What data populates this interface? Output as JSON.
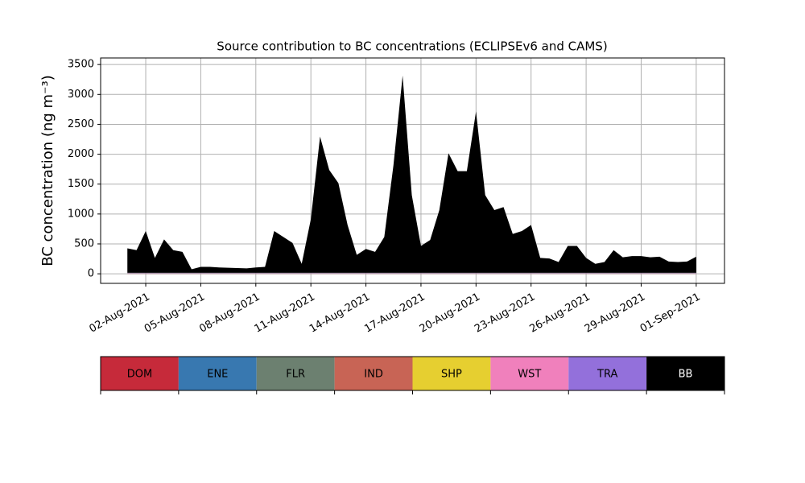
{
  "chart_data": {
    "type": "stacked_area",
    "title": "Source contribution to BC concentrations (ECLIPSEv6 and CAMS)",
    "y_label": "BC concentration (ng m⁻³)",
    "x": [
      "2021-08-01T00:00",
      "2021-08-01T12:00",
      "2021-08-02T00:00",
      "2021-08-02T12:00",
      "2021-08-03T00:00",
      "2021-08-03T12:00",
      "2021-08-04T00:00",
      "2021-08-04T12:00",
      "2021-08-05T00:00",
      "2021-08-05T12:00",
      "2021-08-06T00:00",
      "2021-08-06T12:00",
      "2021-08-07T00:00",
      "2021-08-07T12:00",
      "2021-08-08T00:00",
      "2021-08-08T12:00",
      "2021-08-09T00:00",
      "2021-08-09T12:00",
      "2021-08-10T00:00",
      "2021-08-10T12:00",
      "2021-08-11T00:00",
      "2021-08-11T12:00",
      "2021-08-12T00:00",
      "2021-08-12T12:00",
      "2021-08-13T00:00",
      "2021-08-13T12:00",
      "2021-08-14T00:00",
      "2021-08-14T12:00",
      "2021-08-15T00:00",
      "2021-08-15T12:00",
      "2021-08-16T00:00",
      "2021-08-16T12:00",
      "2021-08-17T00:00",
      "2021-08-17T12:00",
      "2021-08-18T00:00",
      "2021-08-18T12:00",
      "2021-08-19T00:00",
      "2021-08-19T12:00",
      "2021-08-20T00:00",
      "2021-08-20T12:00",
      "2021-08-21T00:00",
      "2021-08-21T12:00",
      "2021-08-22T00:00",
      "2021-08-22T12:00",
      "2021-08-23T00:00",
      "2021-08-23T12:00",
      "2021-08-24T00:00",
      "2021-08-24T12:00",
      "2021-08-25T00:00",
      "2021-08-25T12:00",
      "2021-08-26T00:00",
      "2021-08-26T12:00",
      "2021-08-27T00:00",
      "2021-08-27T12:00",
      "2021-08-28T00:00",
      "2021-08-28T12:00",
      "2021-08-29T00:00",
      "2021-08-29T12:00",
      "2021-08-30T00:00",
      "2021-08-30T12:00",
      "2021-08-31T00:00",
      "2021-08-31T12:00",
      "2021-09-01T00:00"
    ],
    "series": [
      {
        "name": "DOM",
        "color": "#c62a3a",
        "values": [
          4,
          4,
          4,
          4,
          4,
          4,
          4,
          4,
          4,
          4,
          4,
          4,
          4,
          4,
          4,
          4,
          4,
          4,
          4,
          4,
          4,
          4,
          4,
          4,
          4,
          4,
          4,
          4,
          4,
          4,
          4,
          4,
          4,
          4,
          4,
          4,
          4,
          4,
          4,
          4,
          4,
          4,
          4,
          4,
          4,
          4,
          4,
          4,
          4,
          4,
          4,
          4,
          4,
          4,
          4,
          4,
          4,
          4,
          4,
          4,
          4,
          4,
          4
        ]
      },
      {
        "name": "ENE",
        "color": "#3878b0",
        "values": [
          2,
          2,
          2,
          2,
          2,
          2,
          2,
          2,
          2,
          2,
          2,
          2,
          2,
          2,
          2,
          2,
          2,
          2,
          2,
          2,
          2,
          2,
          2,
          2,
          2,
          2,
          2,
          2,
          2,
          2,
          2,
          2,
          2,
          2,
          2,
          2,
          2,
          2,
          2,
          2,
          2,
          2,
          2,
          2,
          2,
          2,
          2,
          2,
          2,
          2,
          2,
          2,
          2,
          2,
          2,
          2,
          2,
          2,
          2,
          2,
          2,
          2,
          2
        ]
      },
      {
        "name": "FLR",
        "color": "#6c8070",
        "values": [
          1,
          1,
          1,
          1,
          1,
          1,
          1,
          1,
          1,
          1,
          1,
          1,
          1,
          1,
          1,
          1,
          1,
          1,
          1,
          1,
          1,
          1,
          1,
          1,
          1,
          1,
          1,
          1,
          1,
          1,
          1,
          1,
          1,
          1,
          1,
          1,
          1,
          1,
          1,
          1,
          1,
          1,
          1,
          1,
          1,
          1,
          1,
          1,
          1,
          1,
          1,
          1,
          1,
          1,
          1,
          1,
          1,
          1,
          1,
          1,
          1,
          1,
          1
        ]
      },
      {
        "name": "IND",
        "color": "#c86455",
        "values": [
          3,
          3,
          3,
          3,
          3,
          3,
          3,
          3,
          3,
          3,
          3,
          3,
          3,
          3,
          3,
          3,
          3,
          3,
          3,
          3,
          3,
          3,
          3,
          3,
          3,
          3,
          3,
          3,
          3,
          3,
          3,
          3,
          3,
          3,
          3,
          3,
          3,
          3,
          3,
          3,
          3,
          3,
          3,
          3,
          3,
          3,
          3,
          3,
          3,
          3,
          3,
          3,
          3,
          3,
          3,
          3,
          3,
          3,
          3,
          3,
          3,
          3,
          3
        ]
      },
      {
        "name": "SHP",
        "color": "#e6cf30",
        "values": [
          1,
          1,
          1,
          1,
          1,
          1,
          1,
          1,
          1,
          1,
          1,
          1,
          1,
          1,
          1,
          1,
          1,
          1,
          1,
          1,
          1,
          1,
          1,
          1,
          1,
          1,
          1,
          1,
          1,
          1,
          1,
          1,
          1,
          1,
          1,
          1,
          1,
          1,
          1,
          1,
          1,
          1,
          1,
          1,
          1,
          1,
          1,
          1,
          1,
          1,
          1,
          1,
          1,
          1,
          1,
          1,
          1,
          1,
          1,
          1,
          1,
          1,
          1
        ]
      },
      {
        "name": "WST",
        "color": "#f080bc",
        "values": [
          1,
          1,
          1,
          1,
          1,
          1,
          1,
          1,
          1,
          1,
          1,
          1,
          1,
          1,
          1,
          1,
          1,
          1,
          1,
          1,
          1,
          1,
          1,
          1,
          1,
          1,
          1,
          1,
          1,
          1,
          1,
          1,
          1,
          1,
          1,
          1,
          1,
          1,
          1,
          1,
          1,
          1,
          1,
          1,
          1,
          1,
          1,
          1,
          1,
          1,
          1,
          1,
          1,
          1,
          1,
          1,
          1,
          1,
          1,
          1,
          1,
          1,
          1
        ]
      },
      {
        "name": "TRA",
        "color": "#9370db",
        "values": [
          4,
          4,
          4,
          4,
          4,
          4,
          4,
          4,
          4,
          4,
          4,
          4,
          4,
          4,
          4,
          4,
          4,
          4,
          4,
          4,
          4,
          4,
          4,
          4,
          4,
          4,
          4,
          4,
          4,
          4,
          4,
          4,
          4,
          4,
          4,
          4,
          4,
          4,
          4,
          4,
          4,
          4,
          4,
          4,
          4,
          4,
          4,
          4,
          4,
          4,
          4,
          4,
          4,
          4,
          4,
          4,
          4,
          4,
          4,
          4,
          4,
          4,
          4
        ]
      },
      {
        "name": "BB",
        "color": "#000000",
        "values": [
          410,
          380,
          700,
          250,
          560,
          380,
          350,
          60,
          100,
          100,
          90,
          85,
          80,
          75,
          90,
          100,
          700,
          600,
          500,
          150,
          900,
          2280,
          1720,
          1500,
          800,
          300,
          400,
          350,
          600,
          1800,
          3300,
          1300,
          450,
          550,
          1050,
          2000,
          1700,
          1700,
          2700,
          1300,
          1050,
          1100,
          650,
          700,
          800,
          250,
          240,
          180,
          450,
          450,
          250,
          150,
          180,
          380,
          260,
          280,
          280,
          260,
          270,
          190,
          180,
          190,
          270
        ]
      }
    ],
    "xlim": [
      "2021-07-30T13:00",
      "2021-09-02T13:00"
    ],
    "xticks": [
      {
        "value": "2021-08-02T00:00",
        "label": "02-Aug-2021"
      },
      {
        "value": "2021-08-05T00:00",
        "label": "05-Aug-2021"
      },
      {
        "value": "2021-08-08T00:00",
        "label": "08-Aug-2021"
      },
      {
        "value": "2021-08-11T00:00",
        "label": "11-Aug-2021"
      },
      {
        "value": "2021-08-14T00:00",
        "label": "14-Aug-2021"
      },
      {
        "value": "2021-08-17T00:00",
        "label": "17-Aug-2021"
      },
      {
        "value": "2021-08-20T00:00",
        "label": "20-Aug-2021"
      },
      {
        "value": "2021-08-23T00:00",
        "label": "23-Aug-2021"
      },
      {
        "value": "2021-08-26T00:00",
        "label": "26-Aug-2021"
      },
      {
        "value": "2021-08-29T00:00",
        "label": "29-Aug-2021"
      },
      {
        "value": "2021-09-01T00:00",
        "label": "01-Sep-2021"
      }
    ],
    "ylim": [
      -160,
      3610
    ],
    "yticks": [
      0,
      500,
      1000,
      1500,
      2000,
      2500,
      3000,
      3500
    ],
    "grid": true
  }
}
